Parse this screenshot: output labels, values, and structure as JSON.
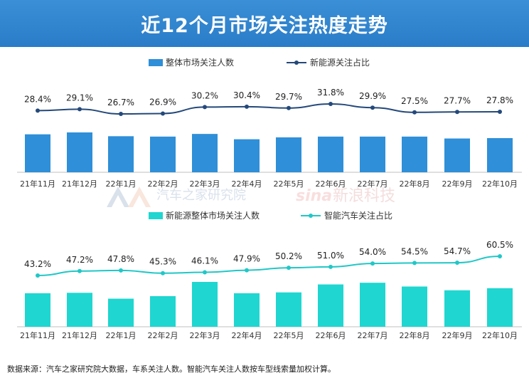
{
  "page": {
    "title": "近12个月市场关注热度走势",
    "footer": "数据来源：汽车之家研究院大数据，车系关注人数。智能汽车关注人数按车型线索量加权计算。",
    "watermark_left": "汽车之家研究院",
    "watermark_right": "新浪科技",
    "watermark_logo": "sina"
  },
  "colors": {
    "banner": "#2a7cc8",
    "bar_top": "#2f8fd8",
    "line_top": "#24497a",
    "bar_bottom": "#1fd6d0",
    "line_bottom": "#22c7c7"
  },
  "chart_data": [
    {
      "type": "bar+line",
      "categories": [
        "21年11月",
        "21年12月",
        "22年1月",
        "22年2月",
        "22年3月",
        "22年4月",
        "22年5月",
        "22年6月",
        "22年7月",
        "22年8月",
        "22年9月",
        "22年10月"
      ],
      "bar_series": {
        "name": "整体市场关注人数",
        "values": [
          100,
          105,
          95,
          94,
          101,
          87,
          92,
          94,
          94,
          94,
          89,
          90
        ]
      },
      "line_series": {
        "name": "新能源关注占比",
        "values": [
          28.4,
          29.1,
          26.7,
          26.9,
          30.2,
          30.4,
          29.7,
          31.8,
          29.9,
          27.5,
          27.7,
          27.8
        ],
        "labels": [
          "28.4%",
          "29.1%",
          "26.7%",
          "26.9%",
          "30.2%",
          "30.4%",
          "29.7%",
          "31.8%",
          "29.9%",
          "27.5%",
          "27.7%",
          "27.8%"
        ]
      },
      "legend_placement": "top"
    },
    {
      "type": "bar+line",
      "categories": [
        "21年11月",
        "21年12月",
        "22年1月",
        "22年2月",
        "22年3月",
        "22年4月",
        "22年5月",
        "22年6月",
        "22年7月",
        "22年8月",
        "22年9月",
        "22年10月"
      ],
      "bar_series": {
        "name": "新能源整体市场关注人数",
        "values": [
          80,
          81,
          67,
          73,
          107,
          80,
          82,
          101,
          105,
          96,
          87,
          92
        ]
      },
      "line_series": {
        "name": "智能汽车关注占比",
        "values": [
          43.2,
          47.2,
          47.8,
          45.3,
          46.1,
          47.9,
          50.2,
          51.0,
          54.0,
          54.5,
          54.7,
          60.5
        ],
        "labels": [
          "43.2%",
          "47.2%",
          "47.8%",
          "45.3%",
          "46.1%",
          "47.9%",
          "50.2%",
          "51.0%",
          "54.0%",
          "54.5%",
          "54.7%",
          "60.5%"
        ]
      },
      "legend_placement": "top"
    }
  ]
}
